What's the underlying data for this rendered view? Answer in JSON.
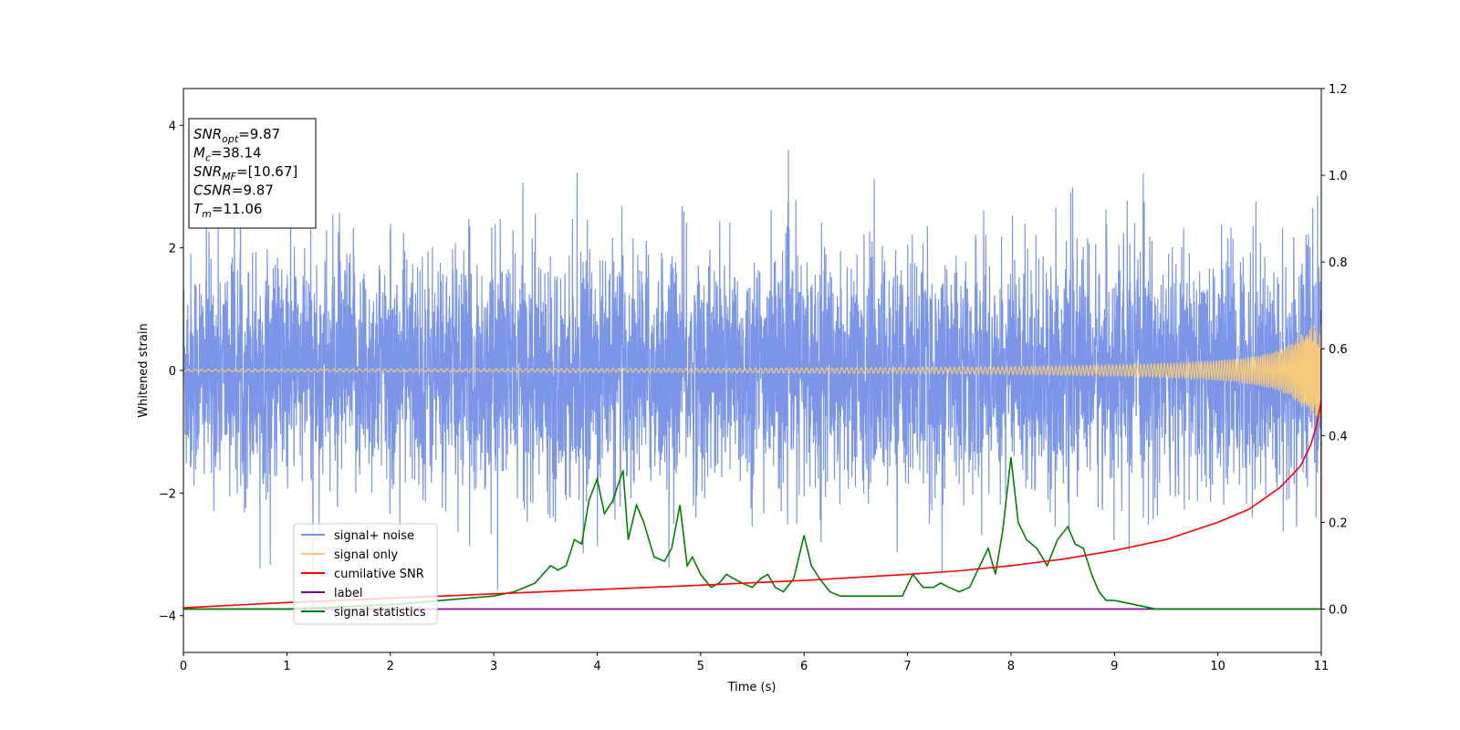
{
  "chart_data": {
    "type": "line",
    "xlabel": "Time (s)",
    "ylabel": "Whitened strain",
    "xlim": [
      0,
      11
    ],
    "ylim": [
      -4.6,
      4.6
    ],
    "y2lim": [
      -0.1,
      1.2
    ],
    "x_ticks": [
      "0",
      "1",
      "2",
      "3",
      "4",
      "5",
      "6",
      "7",
      "8",
      "9",
      "10",
      "11"
    ],
    "y_ticks": [
      "4",
      "2",
      "0",
      "−2",
      "−4"
    ],
    "y_tick_values": [
      4,
      2,
      0,
      -2,
      -4
    ],
    "y2_ticks": [
      "1.2",
      "1.0",
      "0.8",
      "0.6",
      "0.4",
      "0.2",
      "0.0"
    ],
    "y2_tick_values": [
      1.2,
      1.0,
      0.8,
      0.6,
      0.4,
      0.2,
      0.0
    ],
    "grid": false,
    "legend_placement": "lower-left",
    "series": [
      {
        "name": "signal+ noise",
        "color": "#7b96e8",
        "axis": "left",
        "noise_std": 0.95,
        "x_range": [
          0,
          11
        ]
      },
      {
        "name": "signal only",
        "color": "#f5c97a",
        "axis": "left",
        "chirp": {
          "t_merge": 11.06,
          "amp_start": 0.02,
          "amp_end": 0.75
        }
      },
      {
        "name": "cumilative SNR",
        "color": "#ff0000",
        "axis": "right",
        "x": [
          0,
          1,
          2,
          3,
          4,
          5,
          6,
          7,
          7.5,
          8,
          8.5,
          9,
          9.5,
          10,
          10.3,
          10.6,
          10.8,
          10.9,
          10.95,
          11.0
        ],
        "y": [
          0.003,
          0.015,
          0.025,
          0.035,
          0.045,
          0.055,
          0.066,
          0.08,
          0.088,
          0.1,
          0.115,
          0.135,
          0.16,
          0.2,
          0.23,
          0.28,
          0.33,
          0.38,
          0.42,
          0.48
        ]
      },
      {
        "name": "label",
        "color": "#800080",
        "axis": "right",
        "x": [
          0,
          10.99,
          11.0,
          11.0
        ],
        "y": [
          0.0,
          0.0,
          0.0,
          0.6
        ]
      },
      {
        "name": "signal statistics",
        "color": "#008000",
        "axis": "right",
        "x": [
          0,
          0.5,
          1.0,
          1.5,
          2.0,
          2.5,
          3.0,
          3.2,
          3.4,
          3.55,
          3.62,
          3.7,
          3.78,
          3.85,
          3.92,
          4.0,
          4.07,
          4.15,
          4.25,
          4.3,
          4.38,
          4.45,
          4.55,
          4.65,
          4.72,
          4.8,
          4.87,
          4.92,
          5.0,
          5.1,
          5.18,
          5.25,
          5.32,
          5.4,
          5.5,
          5.58,
          5.65,
          5.72,
          5.8,
          5.9,
          6.0,
          6.07,
          6.15,
          6.25,
          6.35,
          6.45,
          6.55,
          6.65,
          6.75,
          6.85,
          6.95,
          7.05,
          7.15,
          7.25,
          7.32,
          7.4,
          7.5,
          7.6,
          7.7,
          7.78,
          7.85,
          7.92,
          8.0,
          8.07,
          8.15,
          8.25,
          8.35,
          8.45,
          8.55,
          8.62,
          8.7,
          8.78,
          8.85,
          8.92,
          9.0,
          9.2,
          9.4,
          10.0,
          11.0
        ],
        "y": [
          0.0,
          0.0,
          0.0,
          0.005,
          0.01,
          0.02,
          0.03,
          0.04,
          0.06,
          0.1,
          0.09,
          0.1,
          0.16,
          0.15,
          0.25,
          0.3,
          0.22,
          0.25,
          0.32,
          0.16,
          0.24,
          0.2,
          0.12,
          0.11,
          0.14,
          0.24,
          0.1,
          0.12,
          0.08,
          0.05,
          0.06,
          0.08,
          0.07,
          0.06,
          0.05,
          0.07,
          0.08,
          0.05,
          0.04,
          0.07,
          0.17,
          0.1,
          0.07,
          0.04,
          0.03,
          0.03,
          0.03,
          0.03,
          0.03,
          0.03,
          0.03,
          0.08,
          0.05,
          0.05,
          0.06,
          0.05,
          0.04,
          0.05,
          0.1,
          0.14,
          0.08,
          0.18,
          0.35,
          0.2,
          0.16,
          0.14,
          0.1,
          0.16,
          0.19,
          0.15,
          0.14,
          0.08,
          0.04,
          0.02,
          0.02,
          0.01,
          0.0,
          0.0,
          0.0
        ]
      }
    ],
    "annotations": [
      {
        "label": "SNR",
        "sub": "opt",
        "value": "=9.87"
      },
      {
        "label": "M",
        "sub": "c",
        "value": "=38.14"
      },
      {
        "label": "SNR",
        "sub": "MF",
        "value": "=[10.67]"
      },
      {
        "label": "CSNR",
        "sub": "",
        "value": "=9.87"
      },
      {
        "label": "T",
        "sub": "m",
        "value": "=11.06"
      }
    ]
  }
}
